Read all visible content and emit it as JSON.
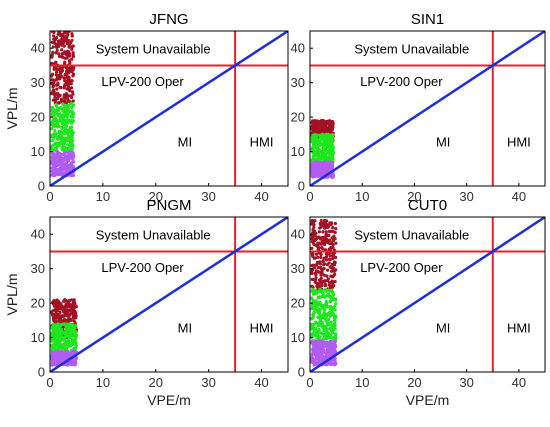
{
  "chart_data": [
    {
      "type": "scatter",
      "title": "JFNG",
      "xlabel": "",
      "ylabel": "VPL/m",
      "xlim": [
        0,
        45
      ],
      "ylim": [
        0,
        45
      ],
      "xticks": [
        "0",
        "10",
        "20",
        "30",
        "40"
      ],
      "yticks": [
        "0",
        "10",
        "20",
        "30",
        "40"
      ],
      "threshold_vertical": 35,
      "threshold_horizontal": 35,
      "regions": {
        "system_unavailable": "System Unavailable",
        "lpv": "LPV-200 Oper",
        "mi": "MI",
        "hmi": "HMI"
      },
      "point_clusters": [
        {
          "color": "#a31224",
          "x_range": [
            0.3,
            4.5
          ],
          "y_range": [
            24,
            45
          ]
        },
        {
          "color": "#1fe61f",
          "x_range": [
            0.3,
            4.5
          ],
          "y_range": [
            10,
            24
          ]
        },
        {
          "color": "#b15cf0",
          "x_range": [
            0.3,
            4.5
          ],
          "y_range": [
            3,
            10
          ]
        }
      ]
    },
    {
      "type": "scatter",
      "title": "SIN1",
      "xlabel": "",
      "ylabel": "",
      "xlim": [
        0,
        45
      ],
      "ylim": [
        0,
        45
      ],
      "xticks": [
        "0",
        "10",
        "20",
        "30",
        "40"
      ],
      "yticks": [
        "0",
        "10",
        "20",
        "30",
        "40"
      ],
      "threshold_vertical": 35,
      "threshold_horizontal": 35,
      "regions": {
        "system_unavailable": "System Unavailable",
        "lpv": "LPV-200 Oper",
        "mi": "MI",
        "hmi": "HMI"
      },
      "point_clusters": [
        {
          "color": "#a31224",
          "x_range": [
            0.3,
            4.5
          ],
          "y_range": [
            14,
            19
          ]
        },
        {
          "color": "#1fe61f",
          "x_range": [
            0.3,
            4.5
          ],
          "y_range": [
            7,
            15
          ]
        },
        {
          "color": "#b15cf0",
          "x_range": [
            0.3,
            4.5
          ],
          "y_range": [
            2.5,
            7
          ]
        }
      ]
    },
    {
      "type": "scatter",
      "title": "PNGM",
      "xlabel": "VPE/m",
      "ylabel": "VPL/m",
      "xlim": [
        0,
        45
      ],
      "ylim": [
        0,
        45
      ],
      "xticks": [
        "0",
        "10",
        "20",
        "30",
        "40"
      ],
      "yticks": [
        "0",
        "10",
        "20",
        "30",
        "40"
      ],
      "threshold_vertical": 35,
      "threshold_horizontal": 35,
      "regions": {
        "system_unavailable": "System Unavailable",
        "lpv": "LPV-200 Oper",
        "mi": "MI",
        "hmi": "HMI"
      },
      "point_clusters": [
        {
          "color": "#a31224",
          "x_range": [
            0.3,
            5
          ],
          "y_range": [
            10,
            21
          ]
        },
        {
          "color": "#1fe61f",
          "x_range": [
            0.3,
            5
          ],
          "y_range": [
            6,
            14
          ]
        },
        {
          "color": "#b15cf0",
          "x_range": [
            0.3,
            5
          ],
          "y_range": [
            2,
            6
          ]
        }
      ]
    },
    {
      "type": "scatter",
      "title": "CUT0",
      "xlabel": "VPE/m",
      "ylabel": "",
      "xlim": [
        0,
        45
      ],
      "ylim": [
        0,
        45
      ],
      "xticks": [
        "0",
        "10",
        "20",
        "30",
        "40"
      ],
      "yticks": [
        "0",
        "10",
        "20",
        "30",
        "40"
      ],
      "threshold_vertical": 35,
      "threshold_horizontal": 35,
      "regions": {
        "system_unavailable": "System Unavailable",
        "lpv": "LPV-200 Oper",
        "mi": "MI",
        "hmi": "HMI"
      },
      "point_clusters": [
        {
          "color": "#a31224",
          "x_range": [
            0.3,
            5
          ],
          "y_range": [
            24,
            44
          ]
        },
        {
          "color": "#1fe61f",
          "x_range": [
            0.3,
            5
          ],
          "y_range": [
            9,
            24
          ]
        },
        {
          "color": "#b15cf0",
          "x_range": [
            0.3,
            5
          ],
          "y_range": [
            2,
            9
          ]
        }
      ]
    }
  ],
  "colors": {
    "threshold_line": "#e8202a",
    "diagonal_line": "#1c2fd8",
    "axis": "#000000"
  }
}
